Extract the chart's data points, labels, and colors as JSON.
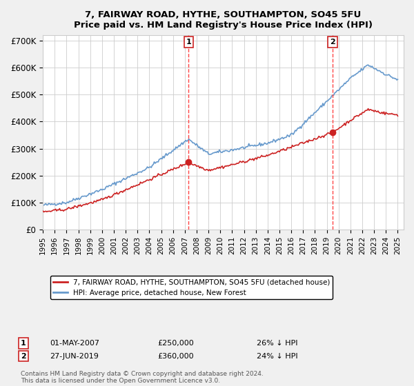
{
  "title1": "7, FAIRWAY ROAD, HYTHE, SOUTHAMPTON, SO45 5FU",
  "title2": "Price paid vs. HM Land Registry's House Price Index (HPI)",
  "ylabel_ticks": [
    "£0",
    "£100K",
    "£200K",
    "£300K",
    "£400K",
    "£500K",
    "£600K",
    "£700K"
  ],
  "ytick_values": [
    0,
    100000,
    200000,
    300000,
    400000,
    500000,
    600000,
    700000
  ],
  "ylim": [
    0,
    720000
  ],
  "xlim_start": 1995.0,
  "xlim_end": 2025.5,
  "hpi_color": "#6699cc",
  "price_color": "#cc2222",
  "marker1_date": 2007.33,
  "marker1_price": 250000,
  "marker2_date": 2019.49,
  "marker2_price": 360000,
  "vline_color": "#ff4444",
  "legend_line1": "7, FAIRWAY ROAD, HYTHE, SOUTHAMPTON, SO45 5FU (detached house)",
  "legend_line2": "HPI: Average price, detached house, New Forest",
  "annotation1_label": "1",
  "annotation1_date": "01-MAY-2007",
  "annotation1_price": "£250,000",
  "annotation1_pct": "26% ↓ HPI",
  "annotation2_label": "2",
  "annotation2_date": "27-JUN-2019",
  "annotation2_price": "£360,000",
  "annotation2_pct": "24% ↓ HPI",
  "footer": "Contains HM Land Registry data © Crown copyright and database right 2024.\nThis data is licensed under the Open Government Licence v3.0.",
  "bg_color": "#f0f0f0",
  "plot_bg_color": "#ffffff"
}
